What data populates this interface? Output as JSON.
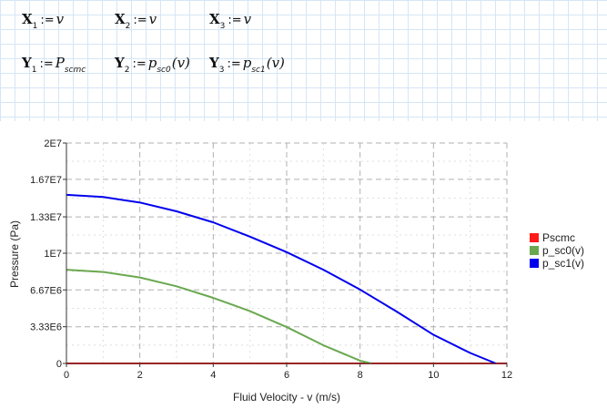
{
  "definitions": [
    {
      "var": "X",
      "sub": "1",
      "op": ":=",
      "val": "v",
      "valsub": ""
    },
    {
      "var": "X",
      "sub": "2",
      "op": ":=",
      "val": "v",
      "valsub": ""
    },
    {
      "var": "X",
      "sub": "3",
      "op": ":=",
      "val": "v",
      "valsub": ""
    },
    {
      "var": "Y",
      "sub": "1",
      "op": ":=",
      "val": "P",
      "valsub": "scmc"
    },
    {
      "var": "Y",
      "sub": "2",
      "op": ":=",
      "val": "p",
      "valsub": "sc0",
      "arg": "(v)"
    },
    {
      "var": "Y",
      "sub": "3",
      "op": ":=",
      "val": "p",
      "valsub": "sc1",
      "arg": "(v)"
    }
  ],
  "colors": {
    "Pscmc": "#ff1a1a",
    "p_sc0": "#6aa84f",
    "p_sc1": "#0000ee",
    "grid": "#b0b0b0"
  },
  "chart_data": {
    "type": "line",
    "xlabel": "Fluid Velocity - v (m/s)",
    "ylabel": "Pressure (Pa)",
    "xlim": [
      0,
      12
    ],
    "ylim": [
      0,
      20000000
    ],
    "xticks": [
      0,
      2,
      4,
      6,
      8,
      10,
      12
    ],
    "yticks": [
      0,
      3330000,
      6670000,
      10000000,
      13300000,
      16700000,
      20000000
    ],
    "yticklabels": [
      "0",
      "3.33E6",
      "6.67E6",
      "1E7",
      "1.33E7",
      "1.67E7",
      "2E7"
    ],
    "grid": true,
    "legend_position": "right",
    "series": [
      {
        "name": "Pscmc",
        "key": "Pscmc",
        "x": [
          0,
          12
        ],
        "y": [
          0,
          0
        ]
      },
      {
        "name": "p_sc0(v)",
        "key": "p_sc0",
        "x": [
          0,
          1,
          2,
          3,
          4,
          5,
          6,
          7,
          8,
          8.3
        ],
        "y": [
          8500000,
          8300000,
          7800000,
          7000000,
          5950000,
          4750000,
          3300000,
          1650000,
          250000,
          0
        ]
      },
      {
        "name": "p_sc1(v)",
        "key": "p_sc1",
        "x": [
          0,
          1,
          2,
          3,
          4,
          5,
          6,
          7,
          8,
          9,
          10,
          11,
          11.7
        ],
        "y": [
          15300000,
          15100000,
          14600000,
          13800000,
          12800000,
          11500000,
          10100000,
          8500000,
          6700000,
          4700000,
          2600000,
          950000,
          0
        ]
      }
    ]
  }
}
